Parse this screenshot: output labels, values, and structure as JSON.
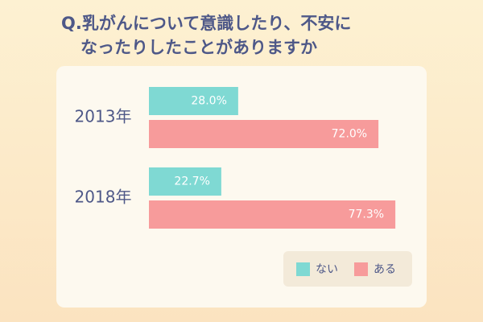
{
  "chart_data": {
    "type": "bar",
    "orientation": "horizontal",
    "title_lines": [
      "Q.乳がんについて意識したり、不安に",
      "なったりしたことがありますか"
    ],
    "categories": [
      "2013年",
      "2018年"
    ],
    "series": [
      {
        "name": "ない",
        "color": "#7fd9d3",
        "values": [
          28.0,
          22.7
        ],
        "value_labels": [
          "28.0%",
          "22.7%"
        ]
      },
      {
        "name": "ある",
        "color": "#f79b9b",
        "values": [
          72.0,
          77.3
        ],
        "value_labels": [
          "72.0%",
          "77.3%"
        ]
      }
    ],
    "xlim": [
      0,
      100
    ]
  }
}
